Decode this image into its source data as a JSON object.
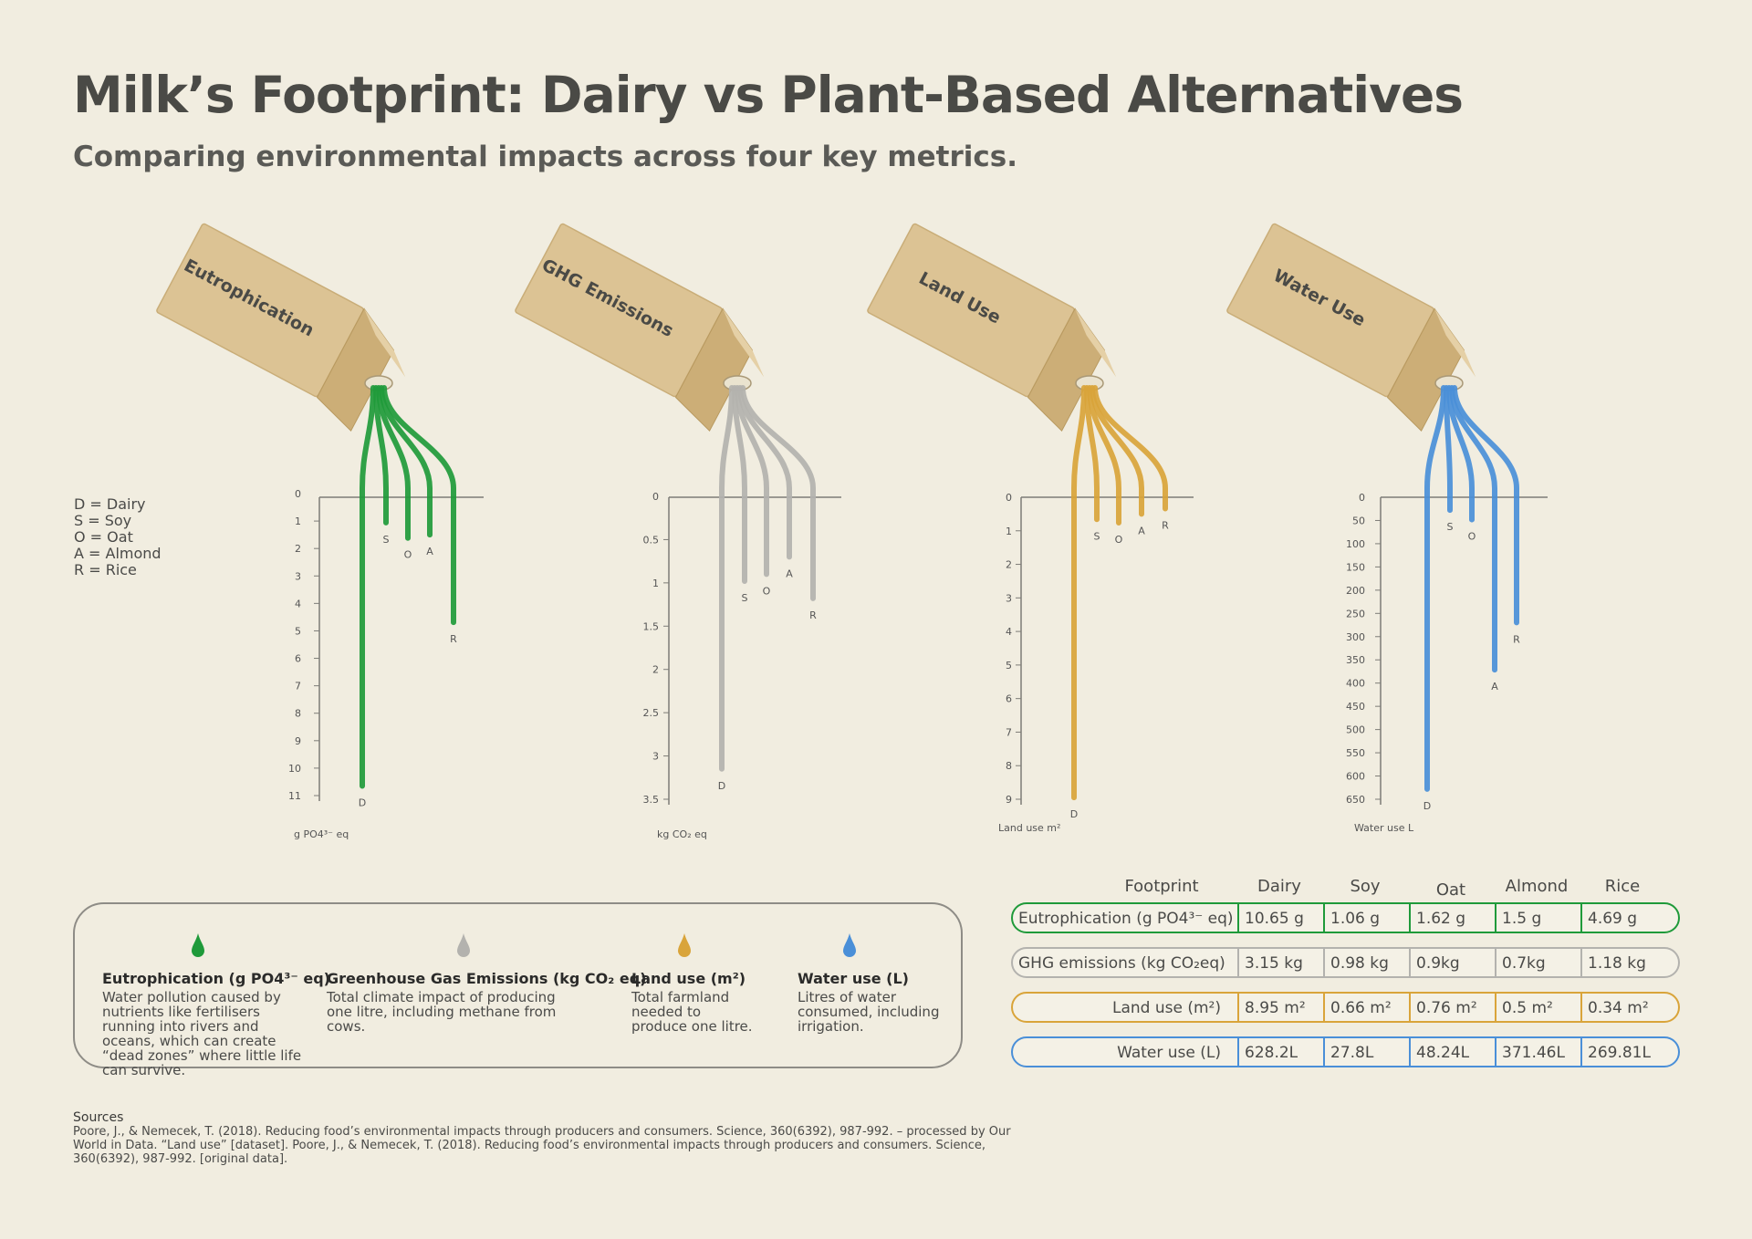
{
  "title": "Milk’s Footprint: Dairy vs Plant-Based Alternatives",
  "subtitle": "Comparing environmental impacts across four key metrics.",
  "key": [
    {
      "letter": "D",
      "label": "D = Dairy"
    },
    {
      "letter": "S",
      "label": "S = Soy"
    },
    {
      "letter": "O",
      "label": "O = Oat"
    },
    {
      "letter": "A",
      "label": "A = Almond"
    },
    {
      "letter": "R",
      "label": "R = Rice"
    }
  ],
  "chart_data": [
    {
      "type": "bar",
      "title": "Eutrophication",
      "unit_label": "g PO4³⁻ eq",
      "color": "#1f9a3a",
      "categories": [
        "D",
        "S",
        "O",
        "A",
        "R"
      ],
      "values": [
        10.65,
        1.06,
        1.62,
        1.5,
        4.69
      ],
      "ylim": [
        0,
        11
      ],
      "ticks": [
        "0",
        "1",
        "2",
        "3",
        "4",
        "5",
        "6",
        "7",
        "8",
        "9",
        "10",
        "11"
      ],
      "orientation": "downward"
    },
    {
      "type": "bar",
      "title": "GHG Emissions",
      "unit_label": "kg CO₂ eq",
      "color": "#b3b2ae",
      "categories": [
        "D",
        "S",
        "O",
        "A",
        "R"
      ],
      "values": [
        3.15,
        0.98,
        0.9,
        0.7,
        1.18
      ],
      "ylim": [
        0,
        3.5
      ],
      "ticks": [
        "0",
        "0.5",
        "1",
        "1.5",
        "2",
        "2.5",
        "3",
        "3.5"
      ],
      "orientation": "downward"
    },
    {
      "type": "bar",
      "title": "Land Use",
      "unit_label": "Land use m²",
      "color": "#d9a43a",
      "categories": [
        "D",
        "S",
        "O",
        "A",
        "R"
      ],
      "values": [
        8.95,
        0.66,
        0.76,
        0.5,
        0.34
      ],
      "ylim": [
        0,
        9
      ],
      "ticks": [
        "0",
        "1",
        "2",
        "3",
        "4",
        "5",
        "6",
        "7",
        "8",
        "9"
      ],
      "orientation": "downward"
    },
    {
      "type": "bar",
      "title": "Water Use",
      "unit_label": "Water use L",
      "color": "#4a8fd8",
      "categories": [
        "D",
        "S",
        "O",
        "A",
        "R"
      ],
      "values": [
        628.2,
        27.8,
        48.24,
        371.46,
        269.81
      ],
      "ylim": [
        0,
        650
      ],
      "ticks": [
        "0",
        "50",
        "100",
        "150",
        "200",
        "250",
        "300",
        "350",
        "400",
        "450",
        "500",
        "550",
        "600",
        "650"
      ],
      "orientation": "downward"
    }
  ],
  "legend": [
    {
      "title": "Eutrophication (g PO4³⁻ eq)",
      "text": "Water pollution caused by nutrients like fertilisers running into rivers and oceans, which can create “dead zones” where little life can survive.",
      "color": "#1f9a3a",
      "icon": "green-drop-icon"
    },
    {
      "title": "Greenhouse Gas Emissions (kg CO₂ eq)",
      "text": "Total climate impact of producing one litre, including methane from cows.",
      "color": "#b3b2ae",
      "icon": "grey-drop-icon"
    },
    {
      "title": "Land use (m²)",
      "text": "Total farmland needed to produce one litre.",
      "color": "#d9a43a",
      "icon": "yellow-drop-icon"
    },
    {
      "title": "Water use (L)",
      "text": "Litres of water consumed, including irrigation.",
      "color": "#4a8fd8",
      "icon": "blue-drop-icon"
    }
  ],
  "table": {
    "headers": [
      "Footprint",
      "Dairy",
      "Soy",
      "Oat",
      "Almond",
      "Rice"
    ],
    "rows": [
      {
        "metric": "Eutrophication (g PO4³⁻ eq)",
        "values": [
          "10.65 g",
          "1.06 g",
          "1.62 g",
          "1.5 g",
          "4.69 g"
        ],
        "color": "#1f9a3a"
      },
      {
        "metric": "GHG emissions (kg CO₂eq)",
        "values": [
          "3.15 kg",
          "0.98 kg",
          "0.9kg",
          "0.7kg",
          "1.18 kg"
        ],
        "color": "#b3b2ae"
      },
      {
        "metric": "Land use (m²)",
        "values": [
          "8.95 m²",
          "0.66 m²",
          "0.76 m²",
          "0.5 m²",
          "0.34 m²"
        ],
        "color": "#d9a43a"
      },
      {
        "metric": "Water use (L)",
        "values": [
          "628.2L",
          "27.8L",
          "48.24L",
          "371.46L",
          "269.81L"
        ],
        "color": "#4a8fd8"
      }
    ]
  },
  "sources": {
    "heading": "Sources",
    "text": "Poore, J., & Nemecek, T. (2018). Reducing food’s environmental impacts through producers and consumers. Science, 360(6392), 987-992. – processed by Our World in Data. “Land use” [dataset]. Poore, J., & Nemecek, T. (2018). Reducing food’s environmental impacts through producers and consumers. Science, 360(6392), 987-992. [original data]."
  }
}
